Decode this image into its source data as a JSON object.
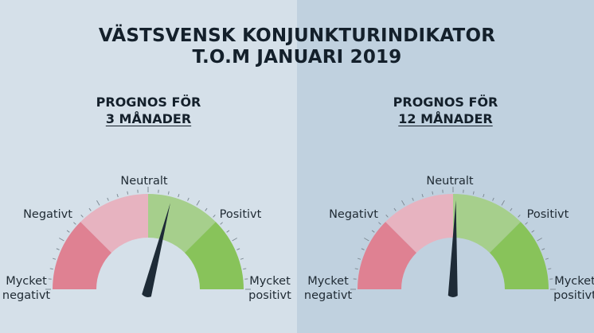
{
  "header": {
    "title_line1": "VÄSTSVENSK KONJUNKTURINDIKATOR",
    "title_line2": "T.O.M JANUARI 2019"
  },
  "gauges": [
    {
      "heading_line1": "PROGNOS FÖR",
      "heading_line2": "3 MÅNADER",
      "labels": {
        "neutral": "Neutralt",
        "negative": "Negativt",
        "positive": "Positivt",
        "very_negative_1": "Mycket",
        "very_negative_2": "negativt",
        "very_positive_1": "Mycket",
        "very_positive_2": "positivt"
      },
      "needle_value": 0.58
    },
    {
      "heading_line1": "PROGNOS FÖR",
      "heading_line2": "12 MÅNADER",
      "labels": {
        "neutral": "Neutralt",
        "negative": "Negativt",
        "positive": "Positivt",
        "very_negative_1": "Mycket",
        "very_negative_2": "negativt",
        "very_positive_1": "Mycket",
        "very_positive_2": "positivt"
      },
      "needle_value": 0.51
    }
  ],
  "colors": {
    "very_negative": "#df8192",
    "negative": "#e7b3c0",
    "positive": "#a6cf8c",
    "very_positive": "#88c35a",
    "needle": "#1e2b37"
  }
}
